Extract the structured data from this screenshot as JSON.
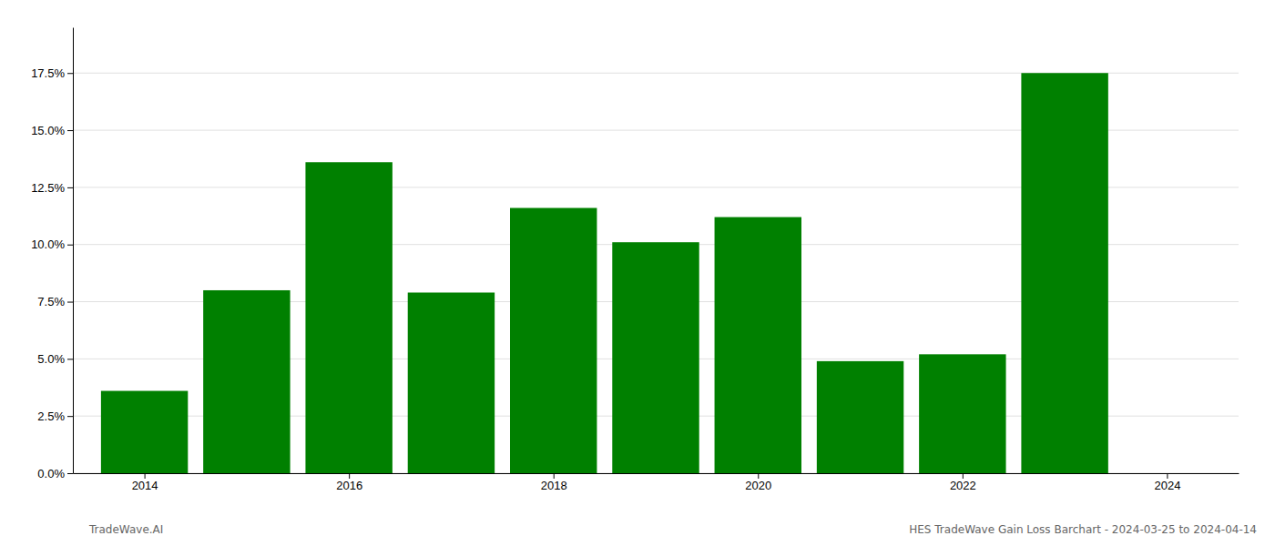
{
  "chart_data": {
    "type": "bar",
    "x": [
      2014,
      2015,
      2016,
      2017,
      2018,
      2019,
      2020,
      2021,
      2022,
      2023
    ],
    "values": [
      0.036,
      0.08,
      0.136,
      0.079,
      0.116,
      0.101,
      0.112,
      0.049,
      0.052,
      0.175
    ],
    "color": "#008000",
    "xlim": [
      2013.3,
      2024.7
    ],
    "xticks": [
      2014,
      2016,
      2018,
      2020,
      2022,
      2024
    ],
    "ylim": [
      0,
      0.195
    ],
    "yticks": [
      {
        "value": 0.0,
        "label": "0.0%"
      },
      {
        "value": 0.025,
        "label": "2.5%"
      },
      {
        "value": 0.05,
        "label": "5.0%"
      },
      {
        "value": 0.075,
        "label": "7.5%"
      },
      {
        "value": 0.1,
        "label": "10.0%"
      },
      {
        "value": 0.125,
        "label": "12.5%"
      },
      {
        "value": 0.15,
        "label": "15.0%"
      },
      {
        "value": 0.175,
        "label": "17.5%"
      }
    ],
    "grid": true,
    "annotations": [
      "TradeWave.AI",
      "HES TradeWave Gain Loss Barchart - 2024-03-25 to 2024-04-14"
    ]
  }
}
